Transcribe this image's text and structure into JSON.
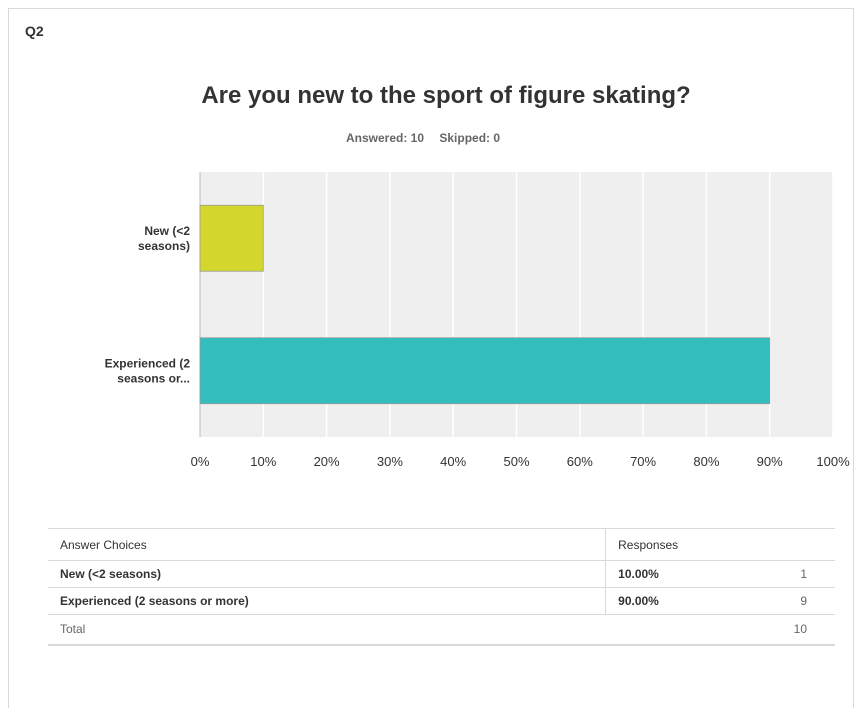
{
  "question": {
    "number": "Q2",
    "title": "Are you new to the sport of figure skating?",
    "answered_label": "Answered: 10",
    "skipped_label": "Skipped: 0"
  },
  "colors": {
    "plot_bg": "#efefef",
    "grid": "#ffffff",
    "series": [
      "#d3d62c",
      "#33bdbd"
    ]
  },
  "chart_data": {
    "type": "bar",
    "orientation": "horizontal",
    "categories": [
      "New (<2 seasons)",
      "Experienced (2 seasons or..."
    ],
    "category_labels": [
      [
        "New (<2",
        "seasons)"
      ],
      [
        "Experienced (2",
        "seasons or..."
      ]
    ],
    "values": [
      10,
      90
    ],
    "xlim": [
      0,
      100
    ],
    "x_ticks": [
      "0%",
      "10%",
      "20%",
      "30%",
      "40%",
      "50%",
      "60%",
      "70%",
      "80%",
      "90%",
      "100%"
    ],
    "grid": true,
    "legend": "none"
  },
  "table": {
    "header": {
      "choice": "Answer Choices",
      "responses": "Responses"
    },
    "rows": [
      {
        "choice": "New (<2 seasons)",
        "percent": "10.00%",
        "count": "1"
      },
      {
        "choice": "Experienced (2 seasons or more)",
        "percent": "90.00%",
        "count": "9"
      }
    ],
    "total": {
      "label": "Total",
      "count": "10"
    }
  }
}
